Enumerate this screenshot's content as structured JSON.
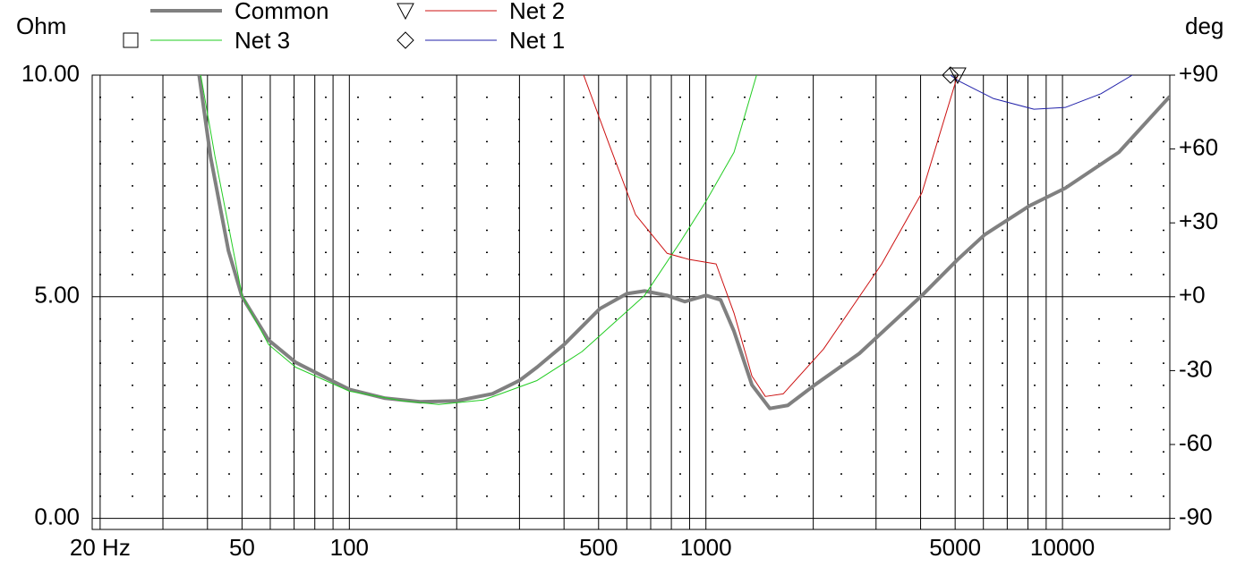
{
  "chart_data": {
    "type": "line",
    "ylabel": "Ohm",
    "y2label": "deg",
    "xscale": "log",
    "xlim": [
      19,
      20000
    ],
    "xticks": [
      {
        "value": 20,
        "label": "20 Hz"
      },
      50,
      100,
      500,
      1000,
      5000,
      10000
    ],
    "xgrid": [
      30,
      40,
      60,
      70,
      80,
      90,
      200,
      300,
      400,
      600,
      700,
      800,
      900,
      2000,
      3000,
      4000,
      6000,
      7000,
      8000,
      9000
    ],
    "ylim": [
      -0.25,
      10
    ],
    "yticks": [
      {
        "value": 0,
        "label": "0.00"
      },
      {
        "value": 5,
        "label": "5.00"
      },
      {
        "value": 10,
        "label": "10.00"
      }
    ],
    "yminor": [
      0.5,
      1,
      1.5,
      2,
      2.5,
      3,
      3.5,
      4,
      4.5,
      5.5,
      6,
      6.5,
      7,
      7.5,
      8,
      8.5,
      9,
      9.5
    ],
    "y2lim": [
      -94.5,
      90
    ],
    "y2ticks": [
      {
        "value": 90,
        "label": "+90"
      },
      {
        "value": 60,
        "label": "+60"
      },
      {
        "value": 30,
        "label": "+30"
      },
      {
        "value": 0,
        "label": "+0"
      },
      -30,
      -60,
      -90
    ],
    "series": [
      {
        "name": "Common",
        "color": "#808080",
        "width": 4,
        "marker": "none",
        "x": [
          37.9,
          40.8,
          45.8,
          50,
          59.4,
          70.7,
          89.1,
          100,
          126,
          158,
          200,
          252,
          300,
          336,
          400,
          504,
          600,
          673,
          778,
          873,
          1000,
          1099,
          1199,
          1346,
          1511,
          1697,
          2019,
          2693,
          4036,
          5082,
          6050,
          8075,
          10180,
          14390,
          20000
        ],
        "values": [
          10,
          8.16,
          6.04,
          5.0,
          4.02,
          3.52,
          3.11,
          2.91,
          2.71,
          2.63,
          2.65,
          2.81,
          3.11,
          3.41,
          3.92,
          4.73,
          5.07,
          5.13,
          5.03,
          4.89,
          5.03,
          4.93,
          4.22,
          3.01,
          2.48,
          2.55,
          3.01,
          3.72,
          5.03,
          5.84,
          6.4,
          7.05,
          7.45,
          8.26,
          9.52
        ]
      },
      {
        "name": "Net 3",
        "color": "#22cc22",
        "width": 1,
        "marker": "square",
        "x": [
          38.3,
          42.0,
          50,
          59.4,
          70.7,
          100,
          141,
          178,
          238,
          336,
          449,
          504,
          673,
          848,
          1000,
          1199,
          1387
        ],
        "values": [
          10,
          8.16,
          5.03,
          3.92,
          3.41,
          2.87,
          2.65,
          2.57,
          2.67,
          3.11,
          3.76,
          4.12,
          5.03,
          6.24,
          7.15,
          8.26,
          10
        ]
      },
      {
        "name": "Net 2",
        "color": "#cc1111",
        "width": 1,
        "marker": "triangle",
        "x": [
          454,
          534,
          635,
          778,
          898,
          1068,
          1199,
          1346,
          1468,
          1648,
          2137,
          3112,
          4036,
          5082
        ],
        "values": [
          10,
          8.46,
          6.85,
          5.98,
          5.84,
          5.74,
          4.63,
          3.21,
          2.75,
          2.81,
          3.82,
          5.74,
          7.35,
          10
        ]
      },
      {
        "name": "Net 1",
        "color": "#2222aa",
        "width": 1,
        "marker": "diamond",
        "x": [
          4853,
          5082,
          6411,
          8318,
          10180,
          12820,
          15700
        ],
        "values": [
          10,
          9.88,
          9.47,
          9.23,
          9.27,
          9.58,
          10
        ]
      }
    ]
  }
}
